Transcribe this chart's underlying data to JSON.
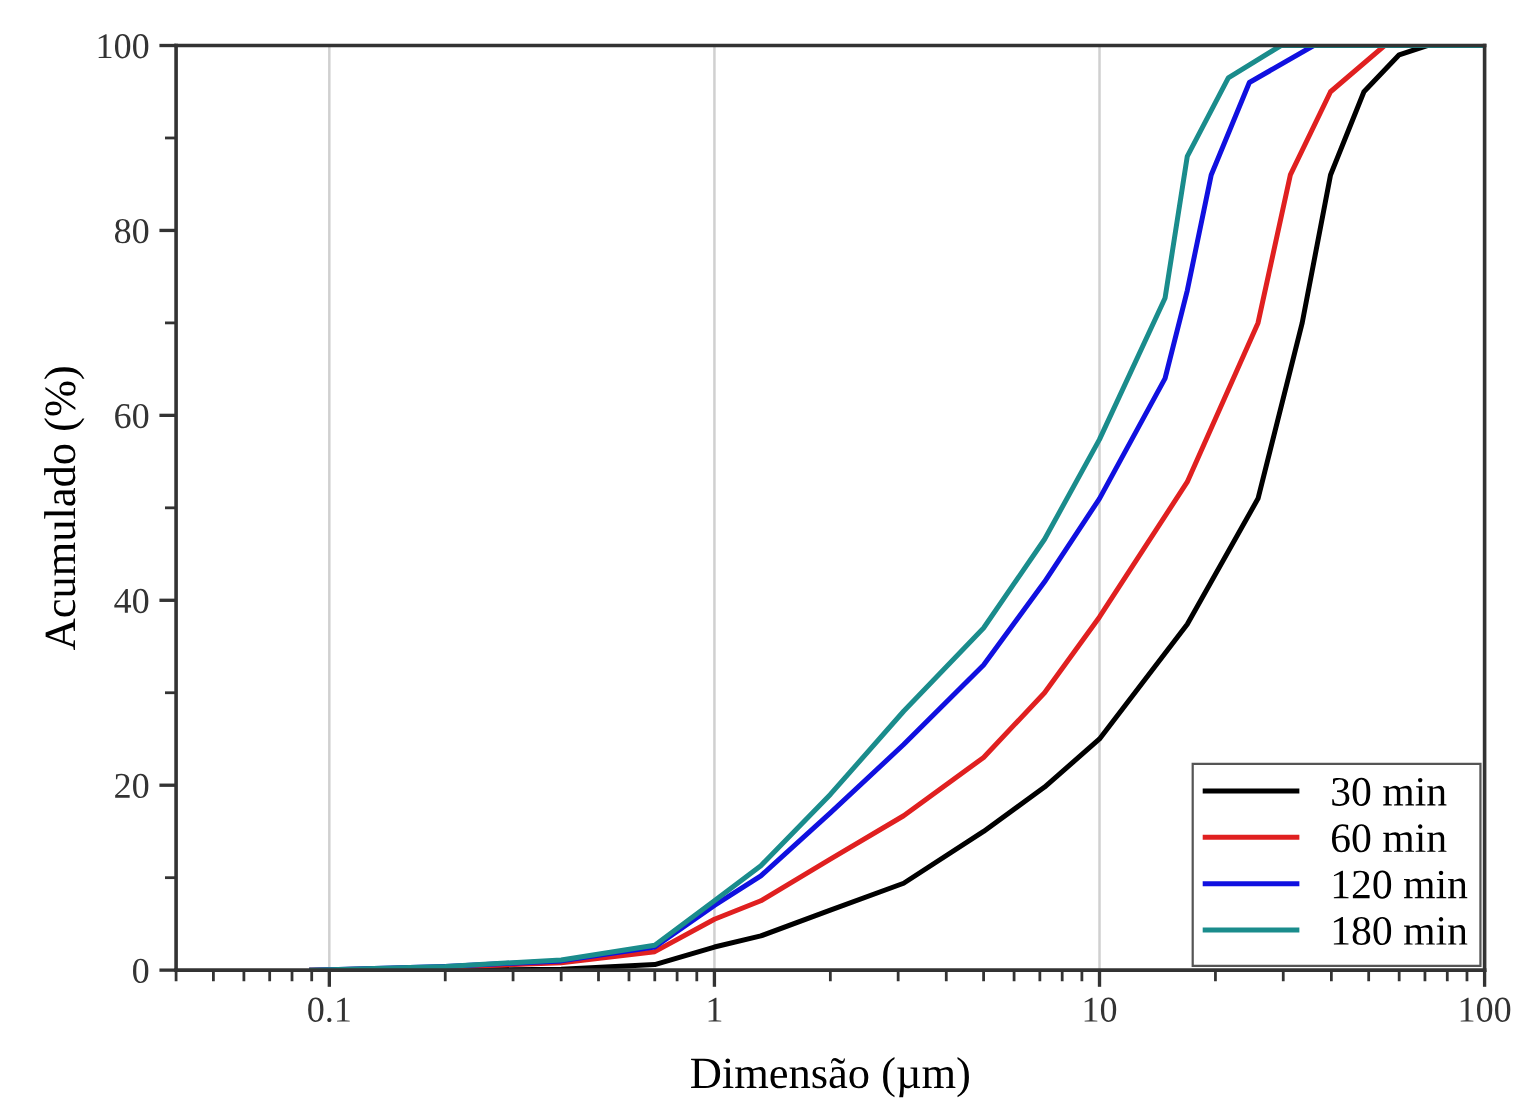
{
  "chart_data": {
    "type": "line",
    "xlabel": "Dimensão (µm)",
    "ylabel": "Acumulado (%)",
    "log": "x",
    "xlim": [
      0.04,
      100
    ],
    "xticks": [
      0.1,
      1,
      10,
      100
    ],
    "ylim": [
      0,
      100
    ],
    "yticks": [
      0,
      20,
      40,
      60,
      80,
      100
    ],
    "grid": "x",
    "legend": "bottom right",
    "line_style": "solid",
    "marker": "none",
    "series": [
      {
        "name": "30 min",
        "color": "#000000",
        "x": [
          0.09,
          0.2,
          0.4,
          0.7,
          1,
          1.32,
          2,
          3.1,
          5,
          7.2,
          10,
          16.9,
          25.8,
          33.6,
          39.8,
          48.6,
          60,
          71,
          100
        ],
        "values": [
          0,
          0,
          0.1,
          0.6,
          2.5,
          3.7,
          6.5,
          9.4,
          15,
          19.8,
          25,
          37.4,
          51,
          70,
          86,
          95,
          99,
          100,
          100
        ]
      },
      {
        "name": "60 min",
        "color": "#e02020",
        "x": [
          0.09,
          0.2,
          0.4,
          0.7,
          1,
          1.32,
          2,
          3.1,
          5,
          7.2,
          10,
          16.9,
          25.8,
          31.3,
          39.8,
          55,
          100
        ],
        "values": [
          0,
          0.3,
          0.8,
          2,
          5.5,
          7.5,
          12,
          16.7,
          23,
          30,
          38.2,
          52.8,
          70,
          86,
          95,
          100,
          100
        ]
      },
      {
        "name": "120 min",
        "color": "#1010e0",
        "x": [
          0.09,
          0.2,
          0.4,
          0.7,
          1,
          1.32,
          2,
          3.1,
          5,
          7.2,
          10,
          14.8,
          16.9,
          19.5,
          24.5,
          36,
          100
        ],
        "values": [
          0,
          0.4,
          1,
          2.5,
          7,
          10.2,
          17,
          24.4,
          33,
          42,
          51,
          64,
          73.5,
          86,
          96,
          100,
          100
        ]
      },
      {
        "name": "180 min",
        "color": "#1a8c8c",
        "x": [
          0.09,
          0.2,
          0.4,
          0.7,
          1,
          1.32,
          2,
          3.1,
          5,
          7.2,
          10,
          14.8,
          16.9,
          21.6,
          29.6,
          100
        ],
        "values": [
          0,
          0.4,
          1.1,
          2.7,
          7.5,
          11.3,
          19,
          28,
          37,
          46.6,
          57.4,
          72.7,
          88,
          96.5,
          100,
          100
        ]
      }
    ]
  }
}
